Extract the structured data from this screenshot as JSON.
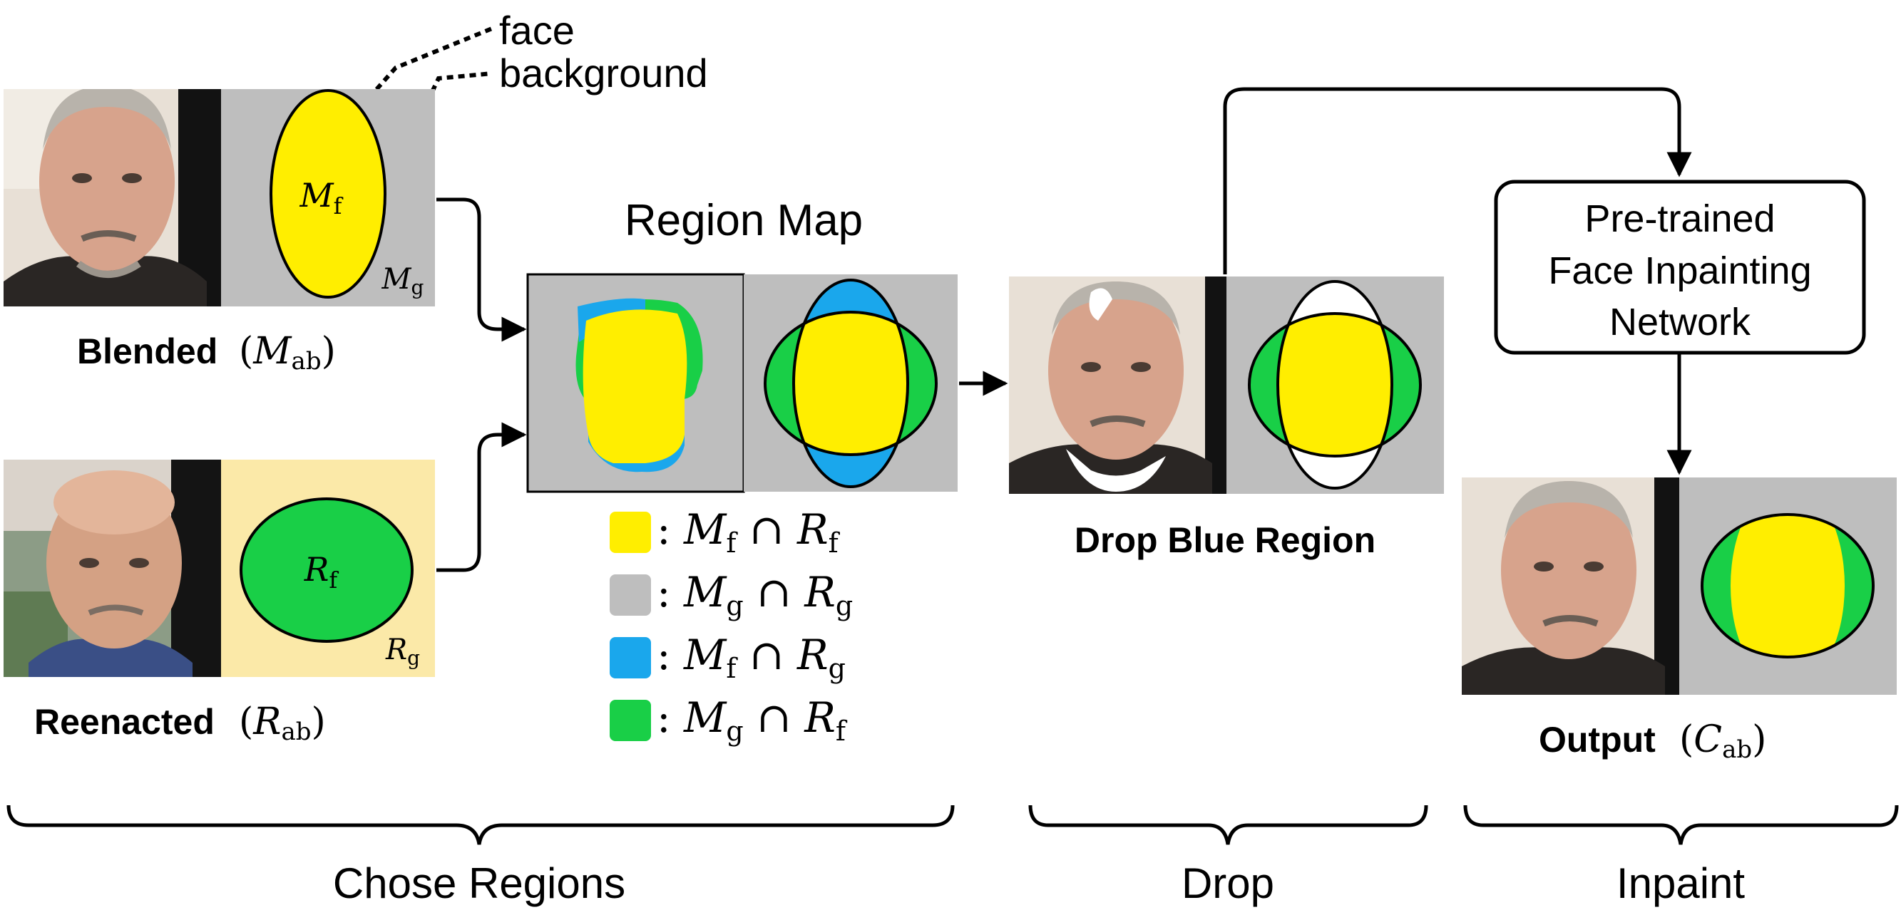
{
  "annotations": {
    "face": "face",
    "background": "background"
  },
  "blended": {
    "label": "Blended",
    "symbol_main": "M",
    "symbol_sub": "ab",
    "face_symbol": "M",
    "face_sub": "f",
    "bg_symbol": "M",
    "bg_sub": "g"
  },
  "reenacted": {
    "label": "Reenacted",
    "symbol_main": "R",
    "symbol_sub": "ab",
    "face_symbol": "R",
    "face_sub": "f",
    "bg_symbol": "R",
    "bg_sub": "g"
  },
  "region_map": {
    "title": "Region Map"
  },
  "legend": [
    {
      "color": "#ffee00",
      "a": "M",
      "a_sub": "f",
      "op": "∩",
      "b": "R",
      "b_sub": "f"
    },
    {
      "color": "#bebebe",
      "a": "M",
      "a_sub": "g",
      "op": "∩",
      "b": "R",
      "b_sub": "g"
    },
    {
      "color": "#1aa7ec",
      "a": "M",
      "a_sub": "f",
      "op": "∩",
      "b": "R",
      "b_sub": "g"
    },
    {
      "color": "#19cf47",
      "a": "M",
      "a_sub": "g",
      "op": "∩",
      "b": "R",
      "b_sub": "f"
    }
  ],
  "legend_colon": ":",
  "drop": {
    "label": "Drop Blue Region"
  },
  "network": {
    "line1": "Pre-trained",
    "line2": "Face Inpainting",
    "line3": "Network"
  },
  "output": {
    "label": "Output",
    "symbol_main": "C",
    "symbol_sub": "ab"
  },
  "stages": [
    {
      "label": "Chose Regions"
    },
    {
      "label": "Drop"
    },
    {
      "label": "Inpaint"
    }
  ],
  "colors": {
    "face_yellow": "#ffee00",
    "background_gray": "#bebebe",
    "blue_region": "#1aa7ec",
    "green_region": "#19cf47",
    "reenacted_bg": "#fbe9a8",
    "stroke": "#000000"
  }
}
